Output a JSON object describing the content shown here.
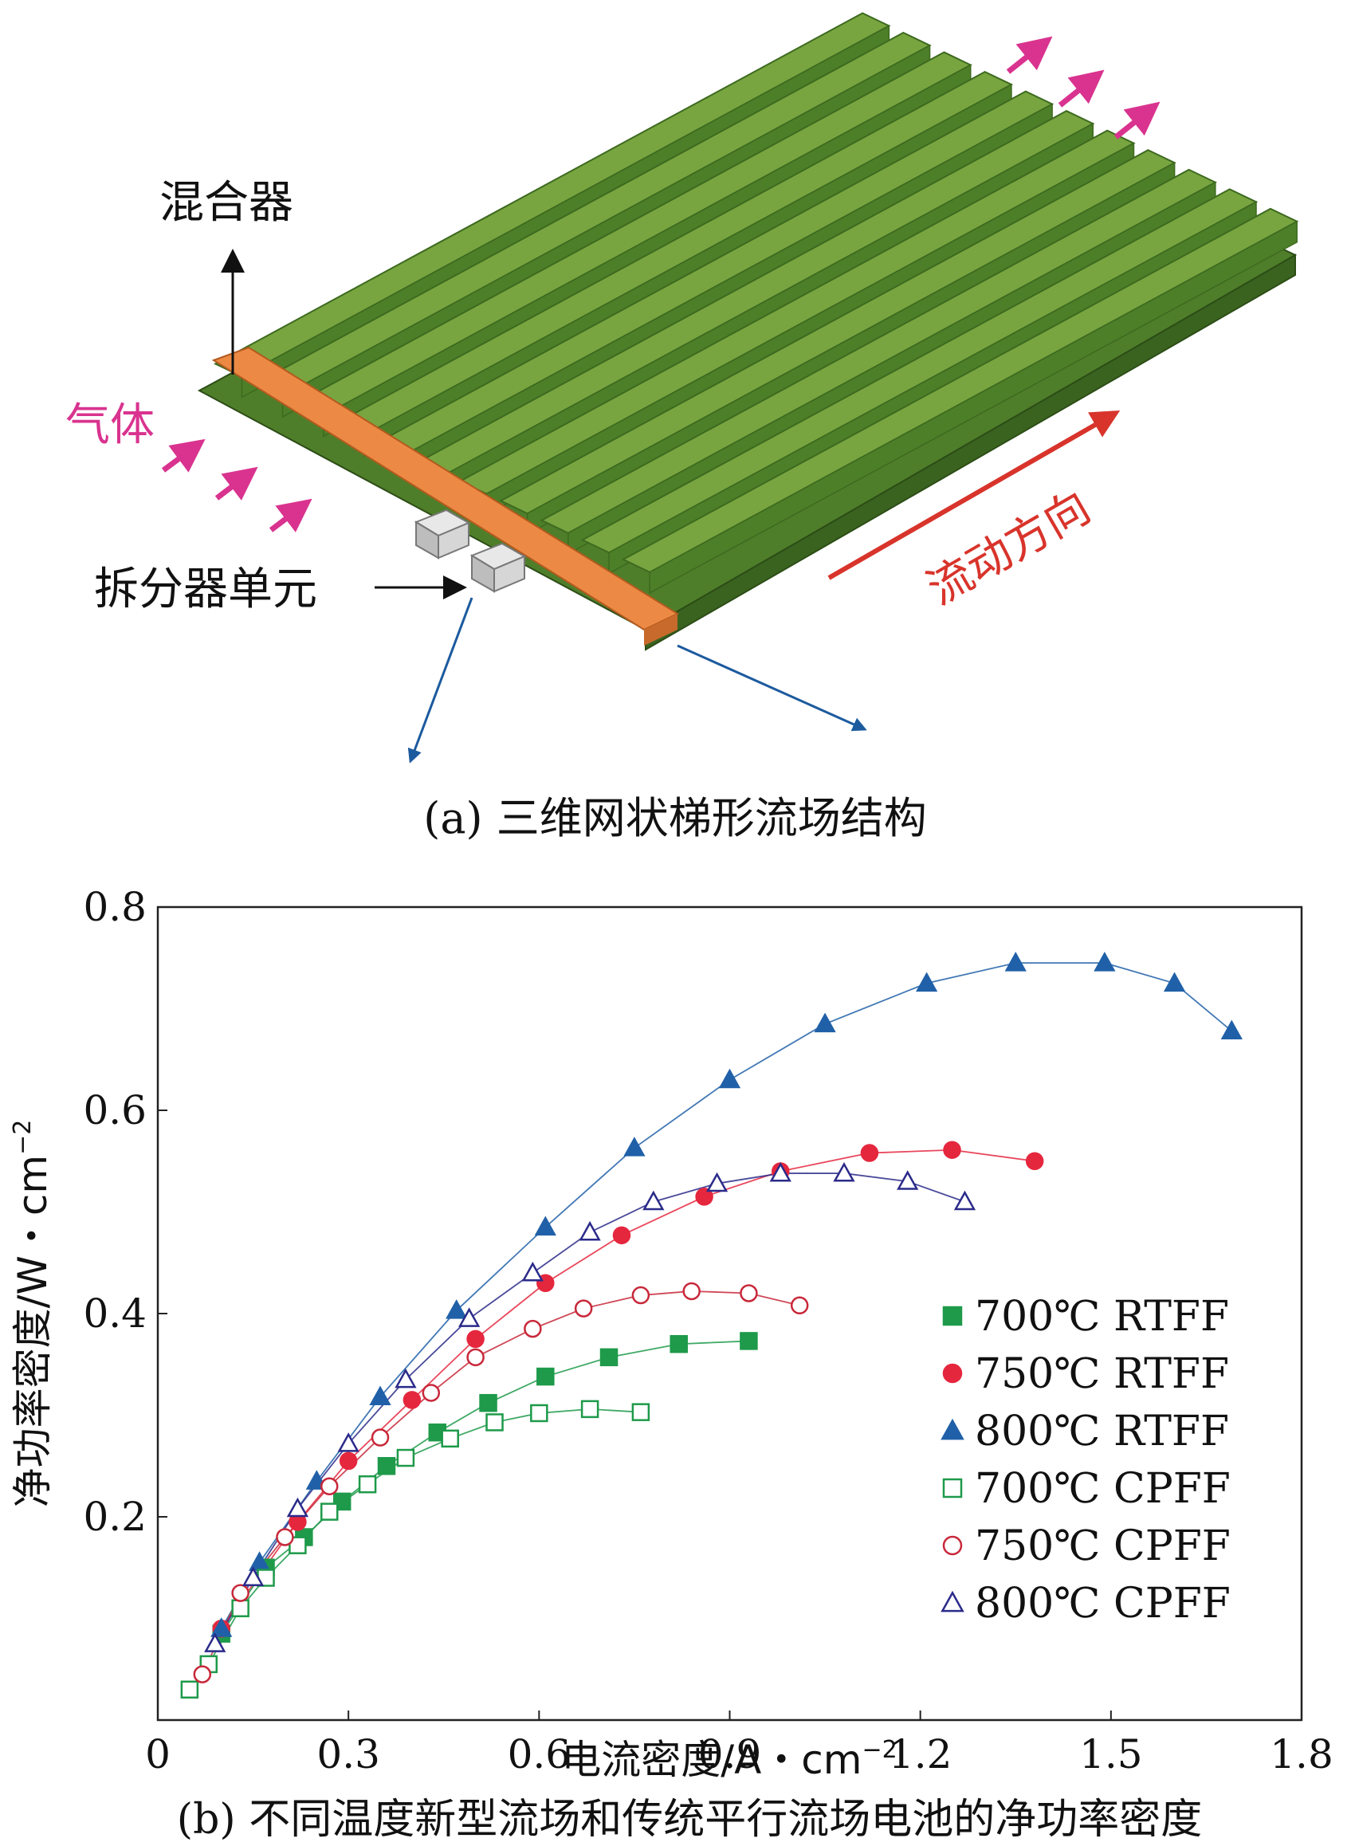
{
  "diagram": {
    "label_mixer": "混合器",
    "label_gas": "气体",
    "label_splitter": "拆分器单元",
    "label_flow": "流动方向",
    "caption": "(a) 三维网状梯形流场结构",
    "colors": {
      "green": "#6f9a3a",
      "green_dark": "#3d6a1f",
      "orange": "#ec8a45",
      "magenta": "#d9338f",
      "red": "#d8342b",
      "blue": "#1c5a9e"
    }
  },
  "caption_b": "(b) 不同温度新型流场和传统平行流场电池的净功率密度",
  "chart_data": {
    "type": "line",
    "xlabel": "电流密度/A・cm",
    "xlabel_sup": "−2",
    "ylabel": "净功率密度/W・cm",
    "ylabel_sup": "−2",
    "xlim": [
      0,
      1.8
    ],
    "ylim": [
      0,
      0.8
    ],
    "x_ticks": [
      {
        "v": 0,
        "t": "0"
      },
      {
        "v": 0.3,
        "t": "0.3"
      },
      {
        "v": 0.6,
        "t": "0.6"
      },
      {
        "v": 0.9,
        "t": "0.9"
      },
      {
        "v": 1.2,
        "t": "1.2"
      },
      {
        "v": 1.5,
        "t": "1.5"
      },
      {
        "v": 1.8,
        "t": "1.8"
      }
    ],
    "y_ticks": [
      {
        "v": 0.2,
        "t": "0.2"
      },
      {
        "v": 0.4,
        "t": "0.4"
      },
      {
        "v": 0.6,
        "t": "0.6"
      },
      {
        "v": 0.8,
        "t": "0.8"
      }
    ],
    "series": [
      {
        "name": "700℃ RTFF",
        "marker": "square",
        "filled": true,
        "color": "#1e9a4a",
        "x": [
          0.1,
          0.17,
          0.23,
          0.29,
          0.36,
          0.44,
          0.52,
          0.61,
          0.71,
          0.82,
          0.93
        ],
        "y": [
          0.085,
          0.15,
          0.18,
          0.215,
          0.25,
          0.283,
          0.312,
          0.338,
          0.357,
          0.37,
          0.373
        ]
      },
      {
        "name": "750℃ RTFF",
        "marker": "circle",
        "filled": true,
        "color": "#e5273e",
        "x": [
          0.1,
          0.22,
          0.3,
          0.4,
          0.5,
          0.61,
          0.73,
          0.86,
          0.98,
          1.12,
          1.25,
          1.38
        ],
        "y": [
          0.09,
          0.195,
          0.255,
          0.315,
          0.375,
          0.43,
          0.477,
          0.515,
          0.54,
          0.558,
          0.561,
          0.55
        ]
      },
      {
        "name": "800℃ RTFF",
        "marker": "triangle",
        "filled": true,
        "color": "#2060a8",
        "x": [
          0.1,
          0.16,
          0.25,
          0.35,
          0.47,
          0.61,
          0.75,
          0.9,
          1.05,
          1.21,
          1.35,
          1.49,
          1.6,
          1.69
        ],
        "y": [
          0.09,
          0.155,
          0.235,
          0.318,
          0.403,
          0.485,
          0.563,
          0.63,
          0.685,
          0.725,
          0.745,
          0.745,
          0.725,
          0.678
        ]
      },
      {
        "name": "700℃ CPFF",
        "marker": "square",
        "filled": false,
        "color": "#1e9a4a",
        "x": [
          0.05,
          0.08,
          0.13,
          0.17,
          0.22,
          0.27,
          0.33,
          0.39,
          0.46,
          0.53,
          0.6,
          0.68,
          0.76
        ],
        "y": [
          0.03,
          0.055,
          0.11,
          0.14,
          0.172,
          0.205,
          0.232,
          0.258,
          0.277,
          0.293,
          0.302,
          0.306,
          0.303
        ]
      },
      {
        "name": "750℃ CPFF",
        "marker": "circle",
        "filled": false,
        "color": "#c8283a",
        "x": [
          0.07,
          0.13,
          0.2,
          0.27,
          0.35,
          0.43,
          0.5,
          0.59,
          0.67,
          0.76,
          0.84,
          0.93,
          1.01
        ],
        "y": [
          0.045,
          0.125,
          0.18,
          0.23,
          0.278,
          0.322,
          0.357,
          0.385,
          0.405,
          0.418,
          0.422,
          0.42,
          0.408
        ]
      },
      {
        "name": "800℃ CPFF",
        "marker": "triangle",
        "filled": false,
        "color": "#2a2a8a",
        "x": [
          0.09,
          0.15,
          0.22,
          0.3,
          0.39,
          0.49,
          0.59,
          0.68,
          0.78,
          0.88,
          0.98,
          1.08,
          1.18,
          1.27
        ],
        "y": [
          0.075,
          0.14,
          0.208,
          0.272,
          0.335,
          0.395,
          0.44,
          0.48,
          0.51,
          0.528,
          0.538,
          0.538,
          0.53,
          0.51
        ]
      }
    ],
    "legend_position": "right-lower"
  }
}
